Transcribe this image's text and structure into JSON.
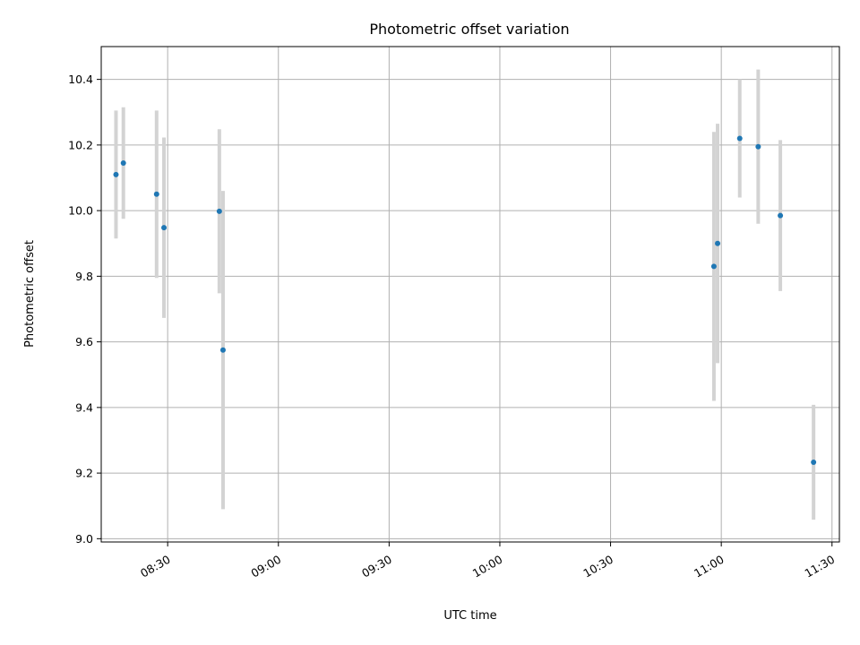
{
  "chart_data": {
    "type": "scatter",
    "title": "Photometric offset variation",
    "xlabel": "UTC time",
    "ylabel": "Photometric offset",
    "xlim": [
      "08:12",
      "11:32"
    ],
    "ylim": [
      8.99,
      10.5
    ],
    "xticks": [
      "08:30",
      "09:00",
      "09:30",
      "10:00",
      "10:30",
      "11:00",
      "11:30"
    ],
    "yticks": [
      9.0,
      9.2,
      9.4,
      9.6,
      9.8,
      10.0,
      10.2,
      10.4
    ],
    "ytick_labels": [
      "9.0",
      "9.2",
      "9.4",
      "9.6",
      "9.8",
      "10.0",
      "10.2",
      "10.4"
    ],
    "grid": true,
    "colors": {
      "points": "#1f77b4",
      "errorbars": "#d3d3d3",
      "grid": "#b0b0b0"
    },
    "points": [
      {
        "time": "08:16",
        "y": 10.11,
        "yerr": 0.195
      },
      {
        "time": "08:18",
        "y": 10.145,
        "yerr": 0.17
      },
      {
        "time": "08:27",
        "y": 10.05,
        "yerr": 0.255
      },
      {
        "time": "08:29",
        "y": 9.948,
        "yerr": 0.275
      },
      {
        "time": "08:44",
        "y": 9.998,
        "yerr": 0.25
      },
      {
        "time": "08:45",
        "y": 9.575,
        "yerr": 0.485
      },
      {
        "time": "10:58",
        "y": 9.83,
        "yerr": 0.41
      },
      {
        "time": "10:59",
        "y": 9.9,
        "yerr": 0.365
      },
      {
        "time": "11:05",
        "y": 10.22,
        "yerr": 0.18
      },
      {
        "time": "11:10",
        "y": 10.195,
        "yerr": 0.235
      },
      {
        "time": "11:16",
        "y": 9.985,
        "yerr": 0.23
      },
      {
        "time": "11:25",
        "y": 9.233,
        "yerr": 0.175
      }
    ]
  }
}
